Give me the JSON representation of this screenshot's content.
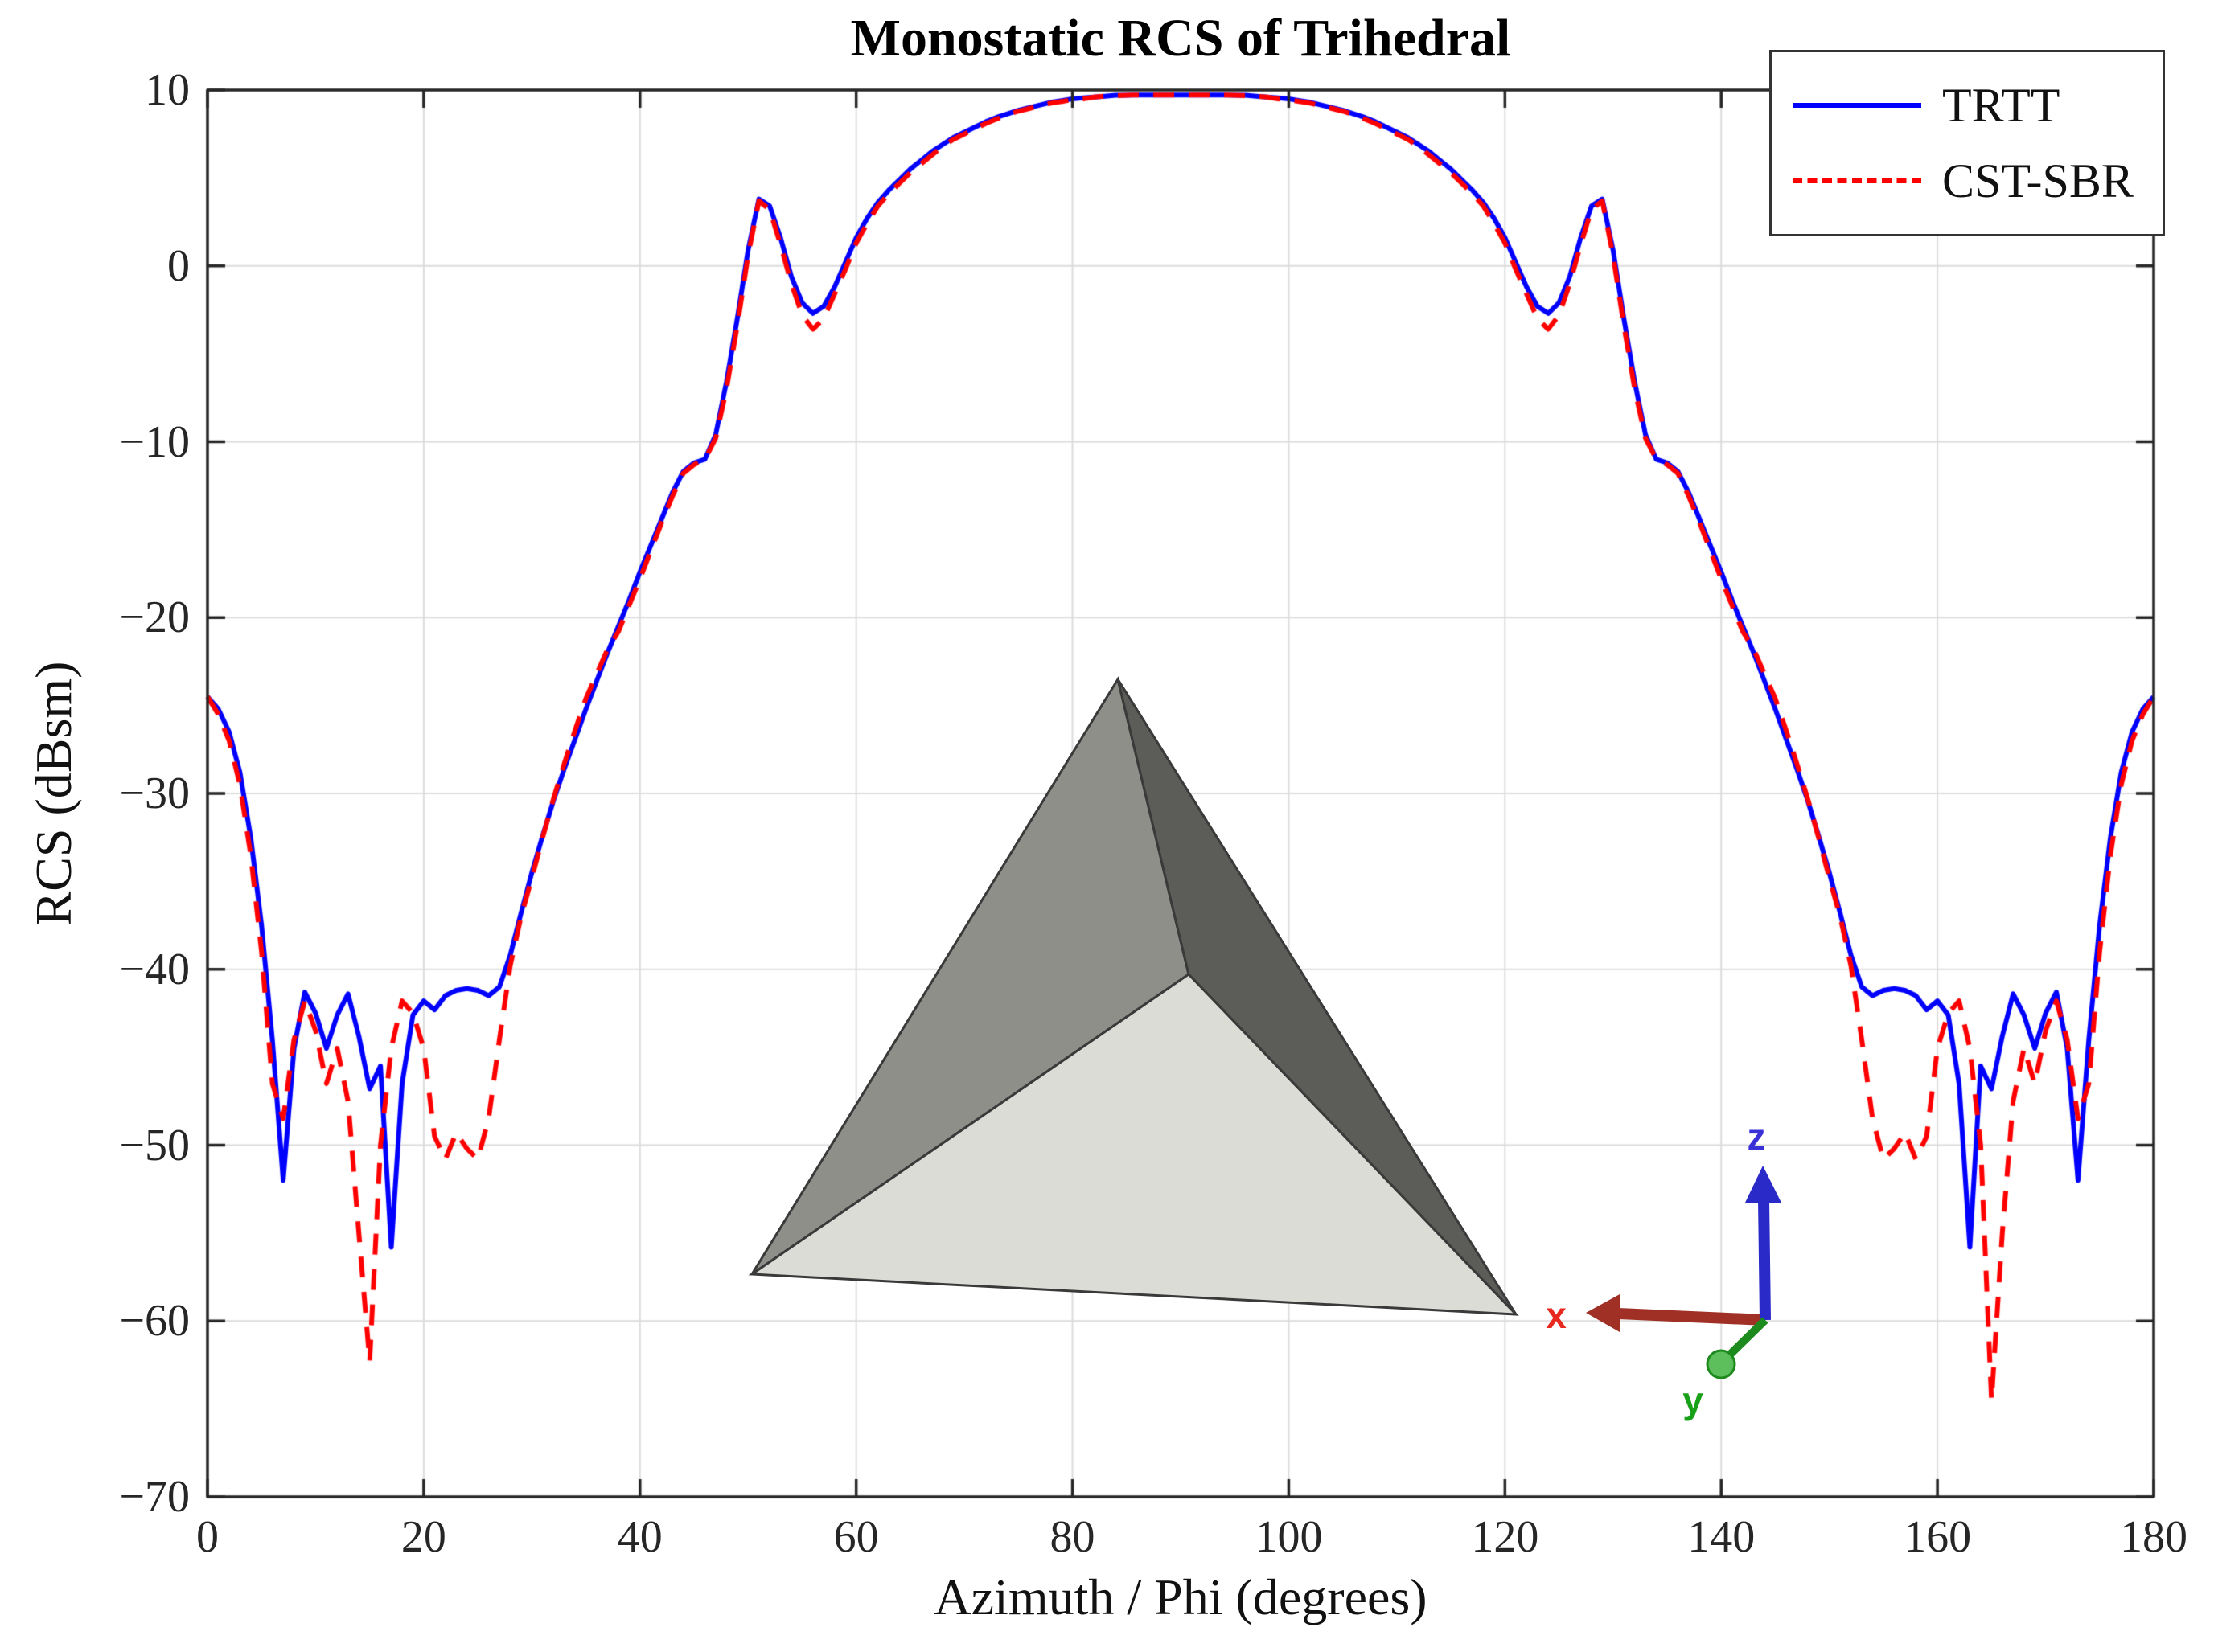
{
  "colors": {
    "grid": "#dcdcdc",
    "axis": "#262626",
    "trtt_blue": "#0000ff",
    "cst_red": "#ff0000"
  },
  "inset": {
    "axis_labels": {
      "x": "x",
      "y": "y",
      "z": "z"
    },
    "colors": {
      "left_face": "#8f8f8a",
      "right_face": "#5c5c58",
      "bottom_face": "#dcdcd7",
      "edge": "#3a3a3a",
      "x_axis": "#a03026",
      "x_label": "#e8291f",
      "y_axis": "#1d8a1d",
      "y_label": "#18a018",
      "z_axis": "#2a2ac8",
      "z_label": "#3a30d8"
    }
  },
  "chart_data": {
    "type": "line",
    "title": "Monostatic RCS of Trihedral",
    "xlabel": "Azimuth / Phi (degrees)",
    "ylabel": "RCS (dBsm)",
    "xlim": [
      0,
      180
    ],
    "ylim": [
      -70,
      10
    ],
    "grid": true,
    "legend_position": "top-right",
    "x_ticks": [
      0,
      20,
      40,
      60,
      80,
      100,
      120,
      140,
      160,
      180
    ],
    "x_tick_labels": [
      "0",
      "20",
      "40",
      "60",
      "80",
      "100",
      "120",
      "140",
      "160",
      "180"
    ],
    "y_ticks": [
      10,
      0,
      -10,
      -20,
      -30,
      -40,
      -50,
      -60,
      -70
    ],
    "y_tick_labels": [
      "10",
      "0",
      "−10",
      "−20",
      "−30",
      "−40",
      "−50",
      "−60",
      "−70"
    ],
    "x": [
      0,
      1,
      2,
      3,
      4,
      5,
      6,
      7,
      8,
      9,
      10,
      11,
      12,
      13,
      14,
      15,
      16,
      17,
      18,
      19,
      20,
      21,
      22,
      23,
      24,
      25,
      26,
      27,
      28,
      29,
      30,
      31,
      32,
      33,
      34,
      35,
      36,
      37,
      38,
      39,
      40,
      41,
      42,
      43,
      44,
      45,
      46,
      47,
      48,
      49,
      50,
      51,
      52,
      53,
      54,
      55,
      56,
      57,
      58,
      59,
      60,
      61,
      62,
      63,
      64,
      65,
      66,
      67,
      68,
      69,
      70,
      71,
      72,
      73,
      74,
      75,
      76,
      77,
      78,
      79,
      80,
      81,
      82,
      83,
      84,
      85,
      86,
      87,
      88,
      89,
      90,
      91,
      92,
      93,
      94,
      95,
      96,
      97,
      98,
      99,
      100,
      101,
      102,
      103,
      104,
      105,
      106,
      107,
      108,
      109,
      110,
      111,
      112,
      113,
      114,
      115,
      116,
      117,
      118,
      119,
      120,
      121,
      122,
      123,
      124,
      125,
      126,
      127,
      128,
      129,
      130,
      131,
      132,
      133,
      134,
      135,
      136,
      137,
      138,
      139,
      140,
      141,
      142,
      143,
      144,
      145,
      146,
      147,
      148,
      149,
      150,
      151,
      152,
      153,
      154,
      155,
      156,
      157,
      158,
      159,
      160,
      161,
      162,
      163,
      164,
      165,
      166,
      167,
      168,
      169,
      170,
      171,
      172,
      173,
      174,
      175,
      176,
      177,
      178,
      179,
      180
    ],
    "series": [
      {
        "name": "TRTT",
        "color": "#0000ff",
        "style": "solid",
        "values": [
          -24.5,
          -25.2,
          -26.5,
          -28.8,
          -32.5,
          -37.5,
          -44.0,
          -52.0,
          -44.5,
          -41.3,
          -42.5,
          -44.5,
          -42.6,
          -41.4,
          -43.8,
          -46.8,
          -45.5,
          -55.8,
          -46.5,
          -42.6,
          -41.8,
          -42.3,
          -41.5,
          -41.2,
          -41.1,
          -41.2,
          -41.5,
          -41.0,
          -39.2,
          -36.8,
          -34.5,
          -32.4,
          -30.4,
          -28.6,
          -26.9,
          -25.2,
          -23.6,
          -22.0,
          -20.5,
          -19.0,
          -17.4,
          -15.9,
          -14.4,
          -12.9,
          -11.7,
          -11.2,
          -11.0,
          -9.6,
          -6.6,
          -3.0,
          0.9,
          3.8,
          3.4,
          1.6,
          -0.6,
          -2.1,
          -2.7,
          -2.3,
          -1.2,
          0.2,
          1.6,
          2.7,
          3.6,
          4.3,
          4.9,
          5.5,
          6.0,
          6.5,
          6.9,
          7.3,
          7.6,
          7.9,
          8.2,
          8.45,
          8.65,
          8.85,
          9.0,
          9.15,
          9.3,
          9.4,
          9.5,
          9.55,
          9.6,
          9.65,
          9.7,
          9.7,
          9.72,
          9.72,
          9.72,
          9.72,
          9.72,
          9.72,
          9.72,
          9.72,
          9.72,
          9.7,
          9.7,
          9.65,
          9.6,
          9.55,
          9.5,
          9.4,
          9.3,
          9.15,
          9.0,
          8.85,
          8.65,
          8.45,
          8.2,
          7.9,
          7.6,
          7.3,
          6.9,
          6.5,
          6.0,
          5.5,
          4.9,
          4.3,
          3.6,
          2.7,
          1.6,
          0.2,
          -1.2,
          -2.3,
          -2.7,
          -2.1,
          -0.6,
          1.6,
          3.4,
          3.8,
          0.9,
          -3.0,
          -6.6,
          -9.6,
          -11.0,
          -11.2,
          -11.7,
          -12.9,
          -14.4,
          -15.9,
          -17.4,
          -19.0,
          -20.5,
          -22.0,
          -23.6,
          -25.2,
          -26.9,
          -28.6,
          -30.4,
          -32.4,
          -34.5,
          -36.8,
          -39.2,
          -41.0,
          -41.5,
          -41.2,
          -41.1,
          -41.2,
          -41.5,
          -42.3,
          -41.8,
          -42.6,
          -46.5,
          -55.8,
          -45.5,
          -46.8,
          -43.8,
          -41.4,
          -42.6,
          -44.5,
          -42.5,
          -41.3,
          -44.5,
          -52.0,
          -44.0,
          -37.5,
          -32.5,
          -28.8,
          -26.5,
          -25.2,
          -24.5
        ]
      },
      {
        "name": "CST-SBR",
        "color": "#ff0000",
        "style": "dashed",
        "values": [
          -24.5,
          -25.5,
          -27.0,
          -29.5,
          -33.5,
          -39.0,
          -46.5,
          -48.5,
          -44.0,
          -41.8,
          -43.5,
          -46.5,
          -44.5,
          -47.5,
          -55.0,
          -62.3,
          -50.0,
          -44.5,
          -41.8,
          -42.5,
          -44.5,
          -49.5,
          -50.8,
          -49.3,
          -50.2,
          -50.8,
          -48.5,
          -44.0,
          -39.8,
          -37.0,
          -34.8,
          -32.5,
          -30.3,
          -28.3,
          -26.4,
          -24.6,
          -23.2,
          -21.8,
          -20.8,
          -19.3,
          -17.8,
          -16.2,
          -14.6,
          -13.1,
          -11.8,
          -11.3,
          -11.0,
          -9.8,
          -7.0,
          -3.4,
          0.6,
          3.7,
          3.2,
          1.2,
          -1.0,
          -2.8,
          -3.6,
          -3.0,
          -1.6,
          -0.2,
          1.3,
          2.4,
          3.4,
          4.1,
          4.7,
          5.3,
          5.8,
          6.3,
          6.8,
          7.2,
          7.5,
          7.8,
          8.1,
          8.35,
          8.6,
          8.8,
          8.95,
          9.1,
          9.25,
          9.35,
          9.45,
          9.5,
          9.6,
          9.65,
          9.68,
          9.7,
          9.72,
          9.72,
          9.72,
          9.72,
          9.72,
          9.72,
          9.72,
          9.72,
          9.72,
          9.7,
          9.68,
          9.65,
          9.6,
          9.5,
          9.45,
          9.35,
          9.25,
          9.1,
          8.95,
          8.8,
          8.6,
          8.35,
          8.1,
          7.8,
          7.5,
          7.2,
          6.8,
          6.3,
          5.8,
          5.3,
          4.7,
          4.1,
          3.4,
          2.4,
          1.3,
          -0.2,
          -1.6,
          -3.0,
          -3.6,
          -2.8,
          -1.0,
          1.2,
          3.2,
          3.7,
          0.6,
          -3.4,
          -7.0,
          -9.8,
          -11.0,
          -11.3,
          -11.8,
          -13.1,
          -14.6,
          -16.2,
          -17.8,
          -19.3,
          -20.8,
          -21.8,
          -23.2,
          -24.6,
          -26.4,
          -28.3,
          -30.3,
          -32.5,
          -34.8,
          -37.0,
          -39.8,
          -44.0,
          -48.5,
          -50.8,
          -50.2,
          -49.3,
          -50.8,
          -49.5,
          -44.5,
          -42.5,
          -41.8,
          -44.5,
          -50.0,
          -64.5,
          -55.0,
          -47.5,
          -44.5,
          -46.5,
          -43.5,
          -41.8,
          -44.0,
          -48.5,
          -46.5,
          -39.0,
          -33.5,
          -29.5,
          -27.0,
          -25.5,
          -24.5
        ]
      }
    ]
  }
}
